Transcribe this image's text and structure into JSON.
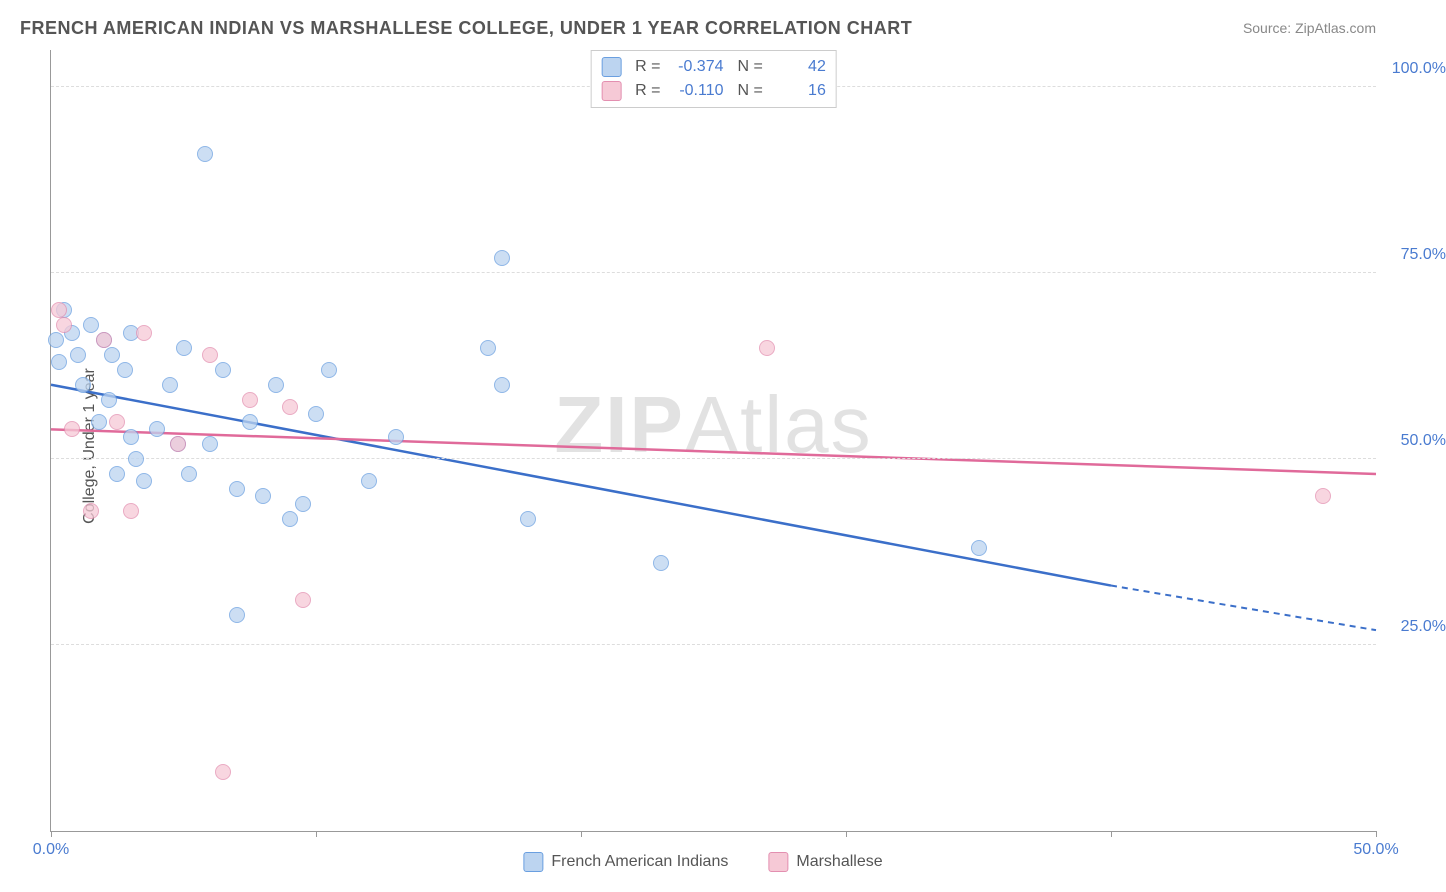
{
  "title": "FRENCH AMERICAN INDIAN VS MARSHALLESE COLLEGE, UNDER 1 YEAR CORRELATION CHART",
  "source_prefix": "Source: ",
  "source_name": "ZipAtlas.com",
  "ylabel": "College, Under 1 year",
  "watermark": {
    "bold": "ZIP",
    "thin": "Atlas"
  },
  "chart": {
    "type": "scatter",
    "xlim": [
      0,
      50
    ],
    "ylim": [
      0,
      105
    ],
    "x_ticks": [
      0,
      10,
      20,
      30,
      40,
      50
    ],
    "x_tick_labels": {
      "0": "0.0%",
      "50": "50.0%"
    },
    "y_gridlines": [
      25,
      50,
      75,
      100
    ],
    "y_tick_labels": {
      "25": "25.0%",
      "50": "50.0%",
      "75": "75.0%",
      "100": "100.0%"
    },
    "background_color": "#ffffff",
    "grid_color": "#dddddd",
    "axis_color": "#999999",
    "tick_label_color": "#4a7bd0",
    "point_radius": 8,
    "series": [
      {
        "name": "French American Indians",
        "fill": "#bcd4f0",
        "stroke": "#6a9fe0",
        "line_color": "#3b6fc9",
        "R": "-0.374",
        "N": "42",
        "trend": {
          "x1": 0,
          "y1": 60,
          "x2_solid": 40,
          "y2_solid": 33,
          "x2_dash": 50,
          "y2_dash": 27
        },
        "points": [
          [
            0.2,
            66
          ],
          [
            0.3,
            63
          ],
          [
            0.5,
            70
          ],
          [
            0.8,
            67
          ],
          [
            1.0,
            64
          ],
          [
            1.2,
            60
          ],
          [
            1.5,
            68
          ],
          [
            1.8,
            55
          ],
          [
            2.0,
            66
          ],
          [
            2.2,
            58
          ],
          [
            2.5,
            48
          ],
          [
            2.8,
            62
          ],
          [
            3.0,
            53
          ],
          [
            3.0,
            67
          ],
          [
            3.5,
            47
          ],
          [
            4.0,
            54
          ],
          [
            4.5,
            60
          ],
          [
            5.0,
            65
          ],
          [
            5.2,
            48
          ],
          [
            5.8,
            91
          ],
          [
            6.0,
            52
          ],
          [
            6.5,
            62
          ],
          [
            7.0,
            46
          ],
          [
            7.0,
            29
          ],
          [
            7.5,
            55
          ],
          [
            8.0,
            45
          ],
          [
            8.5,
            60
          ],
          [
            9.0,
            42
          ],
          [
            9.5,
            44
          ],
          [
            10.0,
            56
          ],
          [
            10.5,
            62
          ],
          [
            12.0,
            47
          ],
          [
            13.0,
            53
          ],
          [
            16.5,
            65
          ],
          [
            17.0,
            77
          ],
          [
            18.0,
            42
          ],
          [
            23.0,
            36
          ],
          [
            17.0,
            60
          ],
          [
            35.0,
            38
          ],
          [
            3.2,
            50
          ],
          [
            4.8,
            52
          ],
          [
            2.3,
            64
          ]
        ]
      },
      {
        "name": "Marshallese",
        "fill": "#f6c9d6",
        "stroke": "#e38fb0",
        "line_color": "#e06a9a",
        "R": "-0.110",
        "N": "16",
        "trend": {
          "x1": 0,
          "y1": 54,
          "x2_solid": 50,
          "y2_solid": 48,
          "x2_dash": 50,
          "y2_dash": 48
        },
        "points": [
          [
            0.3,
            70
          ],
          [
            0.5,
            68
          ],
          [
            0.8,
            54
          ],
          [
            1.5,
            43
          ],
          [
            2.0,
            66
          ],
          [
            2.5,
            55
          ],
          [
            3.0,
            43
          ],
          [
            3.5,
            67
          ],
          [
            4.8,
            52
          ],
          [
            6.0,
            64
          ],
          [
            7.5,
            58
          ],
          [
            9.0,
            57
          ],
          [
            9.5,
            31
          ],
          [
            27.0,
            65
          ],
          [
            48.0,
            45
          ],
          [
            6.5,
            8
          ]
        ]
      }
    ]
  },
  "legend_bottom": [
    {
      "label": "French American Indians",
      "fill": "#bcd4f0",
      "stroke": "#6a9fe0"
    },
    {
      "label": "Marshallese",
      "fill": "#f6c9d6",
      "stroke": "#e38fb0"
    }
  ]
}
